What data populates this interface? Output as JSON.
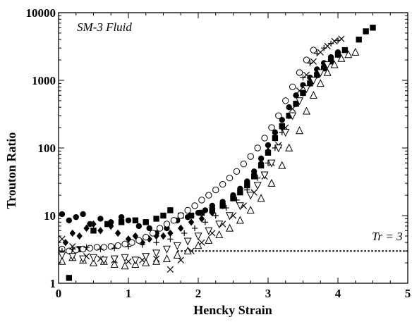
{
  "chart_data": {
    "type": "scatter",
    "title": "SM-3 Fluid",
    "xlabel": "Hencky Strain",
    "ylabel": "Trouton Ratio",
    "xlim": [
      0,
      5
    ],
    "ylim": [
      1,
      10000
    ],
    "yscale": "log",
    "x_ticks": [
      "0",
      "1",
      "2",
      "3",
      "4",
      "5"
    ],
    "y_ticks": [
      "1",
      "10",
      "100",
      "1000",
      "10000"
    ],
    "reference_line": {
      "y": 3,
      "label": "Tr = 3",
      "style": "dotted"
    },
    "series": [
      {
        "marker": "filled-circle",
        "points": [
          [
            0.05,
            10.5
          ],
          [
            0.15,
            8.5
          ],
          [
            0.25,
            9.5
          ],
          [
            0.35,
            10.5
          ],
          [
            0.45,
            7.5
          ],
          [
            0.6,
            9
          ],
          [
            0.75,
            8
          ],
          [
            0.9,
            9.5
          ],
          [
            1.0,
            8.5
          ],
          [
            1.15,
            7
          ],
          [
            1.3,
            6.5
          ],
          [
            1.4,
            5.5
          ],
          [
            1.55,
            6.5
          ],
          [
            1.7,
            8.5
          ],
          [
            1.85,
            9.5
          ],
          [
            2.0,
            11
          ],
          [
            2.1,
            12
          ],
          [
            2.2,
            14
          ],
          [
            2.35,
            16
          ],
          [
            2.5,
            20
          ],
          [
            2.6,
            25
          ],
          [
            2.7,
            32
          ],
          [
            2.8,
            45
          ],
          [
            2.9,
            70
          ],
          [
            3.0,
            110
          ],
          [
            3.1,
            170
          ],
          [
            3.2,
            260
          ],
          [
            3.3,
            400
          ],
          [
            3.4,
            600
          ],
          [
            3.5,
            850
          ],
          [
            3.6,
            1100
          ],
          [
            3.7,
            1450
          ],
          [
            3.8,
            1800
          ],
          [
            3.9,
            2200
          ],
          [
            4.0,
            2600
          ]
        ]
      },
      {
        "marker": "filled-square",
        "points": [
          [
            0.15,
            1.2
          ],
          [
            0.3,
            3.2
          ],
          [
            0.5,
            6
          ],
          [
            0.7,
            7.5
          ],
          [
            0.9,
            8
          ],
          [
            1.1,
            8.5
          ],
          [
            1.25,
            8
          ],
          [
            1.4,
            9
          ],
          [
            1.5,
            10
          ],
          [
            1.6,
            12
          ],
          [
            1.75,
            10
          ],
          [
            1.9,
            10
          ],
          [
            2.05,
            11
          ],
          [
            2.2,
            12
          ],
          [
            2.35,
            14
          ],
          [
            2.5,
            18
          ],
          [
            2.6,
            22
          ],
          [
            2.7,
            28
          ],
          [
            2.8,
            38
          ],
          [
            2.9,
            55
          ],
          [
            3.0,
            85
          ],
          [
            3.1,
            140
          ],
          [
            3.2,
            210
          ],
          [
            3.3,
            300
          ],
          [
            3.4,
            450
          ],
          [
            3.5,
            650
          ],
          [
            3.6,
            900
          ],
          [
            3.7,
            1200
          ],
          [
            3.8,
            1500
          ],
          [
            3.9,
            1900
          ],
          [
            4.0,
            2400
          ],
          [
            4.1,
            2800
          ],
          [
            4.3,
            4000
          ],
          [
            4.4,
            5300
          ],
          [
            4.5,
            6000
          ]
        ]
      },
      {
        "marker": "filled-diamond",
        "points": [
          [
            0.1,
            4
          ],
          [
            0.2,
            5.5
          ],
          [
            0.3,
            5
          ],
          [
            0.4,
            6.5
          ],
          [
            0.5,
            7.5
          ],
          [
            0.6,
            6
          ],
          [
            0.75,
            7
          ],
          [
            0.85,
            5.5
          ],
          [
            1.0,
            4.5
          ],
          [
            1.1,
            5
          ],
          [
            1.2,
            4
          ],
          [
            1.3,
            4.5
          ],
          [
            1.4,
            5
          ],
          [
            1.5,
            5
          ],
          [
            1.6,
            5.5
          ],
          [
            1.75,
            6.5
          ],
          [
            1.9,
            8
          ],
          [
            2.05,
            9
          ],
          [
            2.2,
            11
          ],
          [
            2.35,
            14
          ],
          [
            2.5,
            19
          ],
          [
            2.6,
            24
          ],
          [
            2.7,
            30
          ],
          [
            2.8,
            40
          ],
          [
            2.9,
            60
          ],
          [
            3.0,
            90
          ],
          [
            3.1,
            140
          ],
          [
            3.2,
            200
          ],
          [
            3.3,
            300
          ],
          [
            3.4,
            450
          ],
          [
            3.5,
            650
          ],
          [
            3.6,
            900
          ],
          [
            3.7,
            1200
          ],
          [
            3.8,
            1550
          ],
          [
            3.9,
            1950
          ],
          [
            4.0,
            2400
          ]
        ]
      },
      {
        "marker": "open-circle",
        "points": [
          [
            0.05,
            3.2
          ],
          [
            0.15,
            3.0
          ],
          [
            0.25,
            3.1
          ],
          [
            0.35,
            3.2
          ],
          [
            0.45,
            3.3
          ],
          [
            0.55,
            3.4
          ],
          [
            0.65,
            3.4
          ],
          [
            0.75,
            3.5
          ],
          [
            0.85,
            3.6
          ],
          [
            0.95,
            3.8
          ],
          [
            1.05,
            4
          ],
          [
            1.15,
            4.3
          ],
          [
            1.25,
            4.8
          ],
          [
            1.35,
            5.5
          ],
          [
            1.45,
            6.5
          ],
          [
            1.55,
            7.5
          ],
          [
            1.65,
            8.5
          ],
          [
            1.75,
            10
          ],
          [
            1.85,
            12
          ],
          [
            1.95,
            14
          ],
          [
            2.05,
            17
          ],
          [
            2.15,
            20
          ],
          [
            2.25,
            24
          ],
          [
            2.35,
            29
          ],
          [
            2.45,
            36
          ],
          [
            2.55,
            45
          ],
          [
            2.65,
            58
          ],
          [
            2.75,
            75
          ],
          [
            2.85,
            100
          ],
          [
            2.95,
            140
          ],
          [
            3.05,
            200
          ],
          [
            3.15,
            300
          ],
          [
            3.25,
            500
          ],
          [
            3.35,
            800
          ],
          [
            3.45,
            1300
          ],
          [
            3.55,
            2000
          ],
          [
            3.65,
            2800
          ]
        ]
      },
      {
        "marker": "plus",
        "points": [
          [
            0.05,
            3
          ],
          [
            0.2,
            3.2
          ],
          [
            0.4,
            3.4
          ],
          [
            0.6,
            3.2
          ],
          [
            0.8,
            3.3
          ],
          [
            1.0,
            3.5
          ],
          [
            1.2,
            3.7
          ],
          [
            1.4,
            4
          ],
          [
            1.6,
            4.5
          ],
          [
            1.8,
            5.5
          ],
          [
            1.95,
            6.5
          ],
          [
            2.1,
            8
          ],
          [
            2.25,
            10
          ],
          [
            2.4,
            13
          ],
          [
            2.55,
            17
          ],
          [
            2.7,
            24
          ],
          [
            2.85,
            36
          ],
          [
            3.0,
            60
          ],
          [
            3.1,
            100
          ],
          [
            3.2,
            170
          ],
          [
            3.3,
            300
          ],
          [
            3.4,
            600
          ],
          [
            3.5,
            1100
          ],
          [
            3.6,
            1800
          ],
          [
            3.7,
            2500
          ],
          [
            3.8,
            3000
          ],
          [
            3.9,
            3500
          ],
          [
            4.0,
            3900
          ]
        ]
      },
      {
        "marker": "cross",
        "points": [
          [
            0.05,
            4.5
          ],
          [
            0.2,
            3.5
          ],
          [
            0.4,
            2.5
          ],
          [
            0.6,
            2.3
          ],
          [
            0.8,
            2.2
          ],
          [
            1.0,
            2.1
          ],
          [
            1.2,
            2.2
          ],
          [
            1.4,
            2.3
          ],
          [
            1.6,
            1.6
          ],
          [
            1.75,
            2.2
          ],
          [
            1.9,
            3
          ],
          [
            2.05,
            4
          ],
          [
            2.2,
            5.5
          ],
          [
            2.35,
            7.5
          ],
          [
            2.5,
            10
          ],
          [
            2.65,
            14
          ],
          [
            2.8,
            22
          ],
          [
            2.95,
            38
          ],
          [
            3.05,
            60
          ],
          [
            3.15,
            110
          ],
          [
            3.25,
            200
          ],
          [
            3.35,
            380
          ],
          [
            3.45,
            700
          ],
          [
            3.55,
            1200
          ],
          [
            3.65,
            1900
          ],
          [
            3.75,
            2600
          ],
          [
            3.85,
            3200
          ],
          [
            3.95,
            3800
          ],
          [
            4.05,
            4100
          ]
        ]
      },
      {
        "marker": "open-triangle-up",
        "points": [
          [
            0.05,
            2.1
          ],
          [
            0.2,
            2.4
          ],
          [
            0.35,
            2.2
          ],
          [
            0.5,
            2.0
          ],
          [
            0.65,
            2.1
          ],
          [
            0.8,
            1.9
          ],
          [
            0.95,
            1.8
          ],
          [
            1.1,
            1.9
          ],
          [
            1.25,
            2.0
          ],
          [
            1.4,
            2.1
          ],
          [
            1.55,
            2.3
          ],
          [
            1.7,
            2.6
          ],
          [
            1.85,
            3.0
          ],
          [
            2.0,
            3.6
          ],
          [
            2.15,
            4.3
          ],
          [
            2.3,
            5.2
          ],
          [
            2.45,
            6.5
          ],
          [
            2.6,
            8.5
          ],
          [
            2.75,
            12
          ],
          [
            2.9,
            18
          ],
          [
            3.05,
            30
          ],
          [
            3.2,
            55
          ],
          [
            3.3,
            100
          ],
          [
            3.45,
            180
          ],
          [
            3.55,
            350
          ],
          [
            3.65,
            600
          ],
          [
            3.75,
            900
          ],
          [
            3.85,
            1300
          ],
          [
            3.95,
            1700
          ],
          [
            4.05,
            2100
          ],
          [
            4.15,
            2400
          ],
          [
            4.25,
            2600
          ]
        ]
      },
      {
        "marker": "open-triangle-down",
        "points": [
          [
            0.05,
            2.6
          ],
          [
            0.2,
            2.5
          ],
          [
            0.35,
            2.3
          ],
          [
            0.5,
            2.4
          ],
          [
            0.65,
            2.2
          ],
          [
            0.8,
            2.3
          ],
          [
            0.95,
            2.4
          ],
          [
            1.1,
            2.2
          ],
          [
            1.25,
            2.5
          ],
          [
            1.4,
            2.8
          ],
          [
            1.55,
            3.2
          ],
          [
            1.7,
            3.6
          ],
          [
            1.85,
            4.2
          ],
          [
            2.0,
            5
          ],
          [
            2.15,
            6
          ],
          [
            2.3,
            7.5
          ],
          [
            2.45,
            10
          ],
          [
            2.6,
            14
          ],
          [
            2.75,
            20
          ],
          [
            2.85,
            28
          ],
          [
            2.95,
            40
          ],
          [
            3.05,
            60
          ],
          [
            3.15,
            100
          ],
          [
            3.25,
            170
          ],
          [
            3.35,
            300
          ],
          [
            3.45,
            500
          ],
          [
            3.55,
            750
          ],
          [
            3.65,
            1000
          ],
          [
            3.75,
            1300
          ],
          [
            3.85,
            1700
          ]
        ]
      }
    ]
  }
}
